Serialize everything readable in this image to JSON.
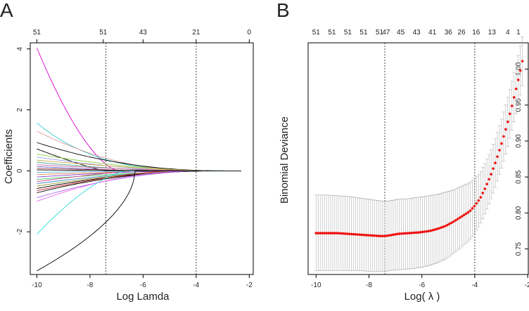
{
  "panel_labels": {
    "a": "A",
    "b": "B"
  },
  "colors": {
    "axis": "#000000",
    "point": "#ee1111",
    "errbar": "#b0b0b0",
    "vline": "#444444"
  },
  "chart_data": [
    {
      "type": "line",
      "title": "",
      "panel": "A",
      "xlabel": "Log Lamda",
      "ylabel": "Coefficients",
      "xlim": [
        -10.25,
        -1.85
      ],
      "ylim": [
        -3.4,
        4.2
      ],
      "xticks": [
        -10,
        -8,
        -6,
        -4,
        -2
      ],
      "yticks": [
        -2,
        0,
        2,
        4
      ],
      "top_ticks": [
        -10,
        -7.5,
        -6,
        -4,
        -2
      ],
      "top_labels": [
        "51",
        "51",
        "43",
        "21",
        "0"
      ],
      "vlines": [
        -7.4,
        -4.0
      ],
      "xmax_line": -2.3,
      "series": [
        {
          "name": "path1",
          "color": "#dd00cc",
          "start": 4.03,
          "end_x": -6.9,
          "shape": 1.6
        },
        {
          "name": "path2",
          "color": "#33cccc",
          "start": 1.57,
          "end_x": -2.3,
          "shape": 3.5
        },
        {
          "name": "path3",
          "color": "#e09999",
          "start": 1.3,
          "end_x": -4.0,
          "shape": 2.0
        },
        {
          "name": "path4",
          "color": "#000000",
          "start": 0.93,
          "end_x": -2.8,
          "shape": 2.2
        },
        {
          "name": "path5",
          "color": "#000000",
          "start": 0.72,
          "end_x": -7.4,
          "shape": 1.2
        },
        {
          "name": "path6",
          "color": "#88cc44",
          "start": 0.55,
          "end_x": -3.2,
          "shape": 1.8
        },
        {
          "name": "path7",
          "color": "#9999ee",
          "start": 0.45,
          "end_x": -4.5,
          "shape": 1.5
        },
        {
          "name": "path8",
          "color": "#ccaa44",
          "start": 0.35,
          "end_x": -3.6,
          "shape": 1.4
        },
        {
          "name": "path9",
          "color": "#44aa88",
          "start": 0.28,
          "end_x": -5.2,
          "shape": 1.3
        },
        {
          "name": "path10",
          "color": "#cc66aa",
          "start": 0.2,
          "end_x": -3.4,
          "shape": 1.6
        },
        {
          "name": "path11",
          "color": "#6666cc",
          "start": 0.14,
          "end_x": -6.0,
          "shape": 1.2
        },
        {
          "name": "path12",
          "color": "#aa4444",
          "start": 0.08,
          "end_x": -4.2,
          "shape": 1.5
        },
        {
          "name": "path13",
          "color": "#000000",
          "start": 0.03,
          "end_x": -3.0,
          "shape": 1.7
        },
        {
          "name": "path14",
          "color": "#55aadd",
          "start": -0.05,
          "end_x": -5.5,
          "shape": 1.3
        },
        {
          "name": "path15",
          "color": "#dd8844",
          "start": -0.12,
          "end_x": -3.8,
          "shape": 1.5
        },
        {
          "name": "path16",
          "color": "#8844cc",
          "start": -0.2,
          "end_x": -4.8,
          "shape": 1.4
        },
        {
          "name": "path17",
          "color": "#44cc66",
          "start": -0.28,
          "end_x": -3.3,
          "shape": 1.6
        },
        {
          "name": "path18",
          "color": "#cc4488",
          "start": -0.35,
          "end_x": -6.3,
          "shape": 1.2
        },
        {
          "name": "path19",
          "color": "#4488cc",
          "start": -0.42,
          "end_x": -3.5,
          "shape": 1.8
        },
        {
          "name": "path20",
          "color": "#999933",
          "start": -0.5,
          "end_x": -4.4,
          "shape": 1.5
        },
        {
          "name": "path21",
          "color": "#000000",
          "start": -0.58,
          "end_x": -3.1,
          "shape": 2.0
        },
        {
          "name": "path22",
          "color": "#cc2222",
          "start": -0.65,
          "end_x": -5.0,
          "shape": 1.4
        },
        {
          "name": "path23",
          "color": "#000000",
          "start": -0.72,
          "end_x": -2.9,
          "shape": 2.2
        },
        {
          "name": "path24",
          "color": "#aa66ee",
          "start": -0.88,
          "end_x": -3.7,
          "shape": 1.8
        },
        {
          "name": "path25",
          "color": "#ee66ee",
          "start": -1.0,
          "end_x": -4.1,
          "shape": 1.9
        },
        {
          "name": "path26",
          "color": "#33dddd",
          "start": -2.08,
          "end_x": -6.6,
          "shape": 1.5
        },
        {
          "name": "path27",
          "color": "#000000",
          "start": -3.28,
          "end_x": -6.3,
          "shape": 0.55
        }
      ]
    },
    {
      "type": "scatter",
      "title": "",
      "panel": "B",
      "xlabel": "Log( λ )",
      "ylabel": "Binomial Deviance",
      "xlim": [
        -10.3,
        -1.95
      ],
      "ylim": [
        0.7145,
        1.0365
      ],
      "xticks": [
        -10,
        -8,
        -6,
        -4,
        -2
      ],
      "yticks": [
        0.75,
        0.8,
        0.85,
        0.9,
        0.95,
        1.0
      ],
      "ytick_labels": [
        "0.75",
        "0.80",
        "0.85",
        "0.90",
        "0.95",
        "1.00"
      ],
      "top_ticks": [
        -10,
        -9.4,
        -8.8,
        -8.2,
        -7.6,
        -7.0,
        -6.4,
        -5.8,
        -5.2,
        -4.6,
        -4.0,
        -3.4,
        -2.9,
        -2.5
      ],
      "top_labels": [
        "51",
        "51",
        "51",
        "51",
        "51",
        "47",
        "45",
        "43",
        "41",
        "36",
        "26",
        "16",
        "13",
        "4",
        "1"
      ],
      "top_label_x": [
        -10,
        -9.4,
        -8.8,
        -8.2,
        -7.6,
        -7.35,
        -6.8,
        -6.2,
        -5.6,
        -5.0,
        -4.5,
        -3.95,
        -3.35,
        -2.75,
        -2.35
      ],
      "vlines": [
        -7.4,
        -4.0
      ],
      "points": [
        {
          "x": -10.0,
          "y": 0.772,
          "lo": 0.72,
          "hi": 0.825
        },
        {
          "x": -9.6,
          "y": 0.772,
          "lo": 0.72,
          "hi": 0.825
        },
        {
          "x": -9.2,
          "y": 0.772,
          "lo": 0.72,
          "hi": 0.824
        },
        {
          "x": -8.8,
          "y": 0.771,
          "lo": 0.72,
          "hi": 0.823
        },
        {
          "x": -8.4,
          "y": 0.77,
          "lo": 0.72,
          "hi": 0.821
        },
        {
          "x": -8.0,
          "y": 0.769,
          "lo": 0.719,
          "hi": 0.819
        },
        {
          "x": -7.6,
          "y": 0.768,
          "lo": 0.719,
          "hi": 0.817
        },
        {
          "x": -7.4,
          "y": 0.768,
          "lo": 0.719,
          "hi": 0.816
        },
        {
          "x": -7.2,
          "y": 0.769,
          "lo": 0.72,
          "hi": 0.817
        },
        {
          "x": -6.9,
          "y": 0.771,
          "lo": 0.721,
          "hi": 0.819
        },
        {
          "x": -6.5,
          "y": 0.772,
          "lo": 0.722,
          "hi": 0.82
        },
        {
          "x": -6.1,
          "y": 0.773,
          "lo": 0.724,
          "hi": 0.822
        },
        {
          "x": -5.7,
          "y": 0.775,
          "lo": 0.727,
          "hi": 0.824
        },
        {
          "x": -5.4,
          "y": 0.778,
          "lo": 0.731,
          "hi": 0.826
        },
        {
          "x": -5.1,
          "y": 0.782,
          "lo": 0.736,
          "hi": 0.829
        },
        {
          "x": -4.8,
          "y": 0.788,
          "lo": 0.744,
          "hi": 0.832
        },
        {
          "x": -4.5,
          "y": 0.795,
          "lo": 0.753,
          "hi": 0.837
        },
        {
          "x": -4.2,
          "y": 0.802,
          "lo": 0.762,
          "hi": 0.842
        },
        {
          "x": -4.0,
          "y": 0.81,
          "lo": 0.772,
          "hi": 0.848
        },
        {
          "x": -3.8,
          "y": 0.82,
          "lo": 0.784,
          "hi": 0.856
        },
        {
          "x": -3.6,
          "y": 0.835,
          "lo": 0.8,
          "hi": 0.87
        },
        {
          "x": -3.4,
          "y": 0.852,
          "lo": 0.818,
          "hi": 0.886
        },
        {
          "x": -3.2,
          "y": 0.872,
          "lo": 0.838,
          "hi": 0.906
        },
        {
          "x": -3.0,
          "y": 0.895,
          "lo": 0.861,
          "hi": 0.929
        },
        {
          "x": -2.8,
          "y": 0.92,
          "lo": 0.886,
          "hi": 0.954
        },
        {
          "x": -2.6,
          "y": 0.948,
          "lo": 0.914,
          "hi": 0.982
        },
        {
          "x": -2.4,
          "y": 0.978,
          "lo": 0.944,
          "hi": 1.012
        },
        {
          "x": -2.2,
          "y": 1.011,
          "lo": 0.977,
          "hi": 1.045
        }
      ]
    }
  ]
}
